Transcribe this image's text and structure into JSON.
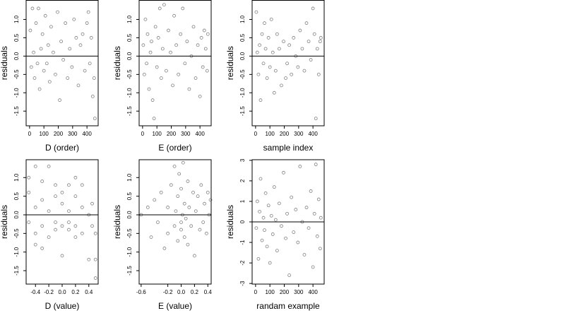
{
  "chart_data": [
    {
      "type": "scatter",
      "x_label": "D (order)",
      "y_label": "residuals",
      "color": "#555555",
      "hline": 0,
      "xlim": [
        -24,
        478
      ],
      "ylim": [
        -1.9,
        1.52
      ],
      "xticks": [
        0,
        100,
        200,
        300,
        400
      ],
      "yticks": [
        {
          "value": -1.5,
          "label": "-1.5"
        },
        {
          "value": -1,
          "label": "-1.0"
        },
        {
          "value": -0.5,
          "label": "-0.5"
        },
        {
          "value": 0,
          "label": "0.0"
        },
        {
          "value": 0.5,
          "label": "0.5"
        },
        {
          "value": 1,
          "label": "1.0"
        }
      ],
      "x": [
        5,
        12,
        20,
        28,
        35,
        45,
        55,
        62,
        70,
        80,
        90,
        100,
        110,
        120,
        130,
        140,
        150,
        165,
        180,
        195,
        210,
        220,
        235,
        250,
        265,
        280,
        295,
        310,
        325,
        340,
        355,
        370,
        385,
        400,
        410,
        420,
        430,
        440,
        450,
        455
      ],
      "values": [
        0.7,
        -0.3,
        1.3,
        0.1,
        -0.6,
        0.9,
        -0.2,
        1.3,
        -0.9,
        0.2,
        0.6,
        -0.4,
        1.1,
        -0.2,
        0.3,
        -0.7,
        0.8,
        0.1,
        -0.5,
        1.2,
        -1.2,
        0.4,
        -0.1,
        0.9,
        -0.6,
        0.2,
        -0.3,
        1.0,
        0.5,
        -0.8,
        0.3,
        0.6,
        -0.4,
        0.9,
        1.2,
        -0.2,
        0.5,
        -1.1,
        -0.6,
        -1.7
      ]
    },
    {
      "type": "scatter",
      "x_label": "E (order)",
      "y_label": "residuals",
      "color": "#555555",
      "hline": 0,
      "xlim": [
        -24,
        478
      ],
      "ylim": [
        -1.9,
        1.52
      ],
      "xticks": [
        0,
        100,
        200,
        300,
        400
      ],
      "yticks": [
        {
          "value": -1.5,
          "label": "-1.5"
        },
        {
          "value": -1,
          "label": "-1.0"
        },
        {
          "value": -0.5,
          "label": "-0.5"
        },
        {
          "value": 0,
          "label": "0.0"
        },
        {
          "value": 0.5,
          "label": "0.5"
        },
        {
          "value": 1,
          "label": "1.0"
        }
      ],
      "x": [
        5,
        12,
        20,
        28,
        35,
        45,
        55,
        62,
        70,
        80,
        90,
        100,
        110,
        120,
        130,
        140,
        150,
        165,
        180,
        195,
        210,
        220,
        235,
        250,
        265,
        280,
        295,
        310,
        325,
        340,
        355,
        370,
        385,
        400,
        410,
        420,
        430,
        440,
        450,
        455
      ],
      "values": [
        0.3,
        -0.5,
        1.0,
        -0.2,
        0.6,
        -0.9,
        0.1,
        0.4,
        -1.2,
        -1.7,
        0.8,
        -0.3,
        0.5,
        1.3,
        -0.6,
        0.2,
        1.4,
        -0.4,
        0.7,
        0.1,
        -0.8,
        1.1,
        0.3,
        -0.5,
        0.6,
        1.3,
        -0.2,
        0.4,
        -0.9,
        0.0,
        0.8,
        -0.6,
        0.3,
        -1.1,
        0.5,
        -0.3,
        0.7,
        0.2,
        -0.4,
        0.6
      ]
    },
    {
      "type": "scatter",
      "x_label": "sample index",
      "y_label": "residuals",
      "color": "#555555",
      "hline": 0,
      "xlim": [
        -24,
        478
      ],
      "ylim": [
        -1.9,
        1.52
      ],
      "xticks": [
        0,
        100,
        200,
        300,
        400
      ],
      "yticks": [
        {
          "value": -1.5,
          "label": "-1.5"
        },
        {
          "value": -1,
          "label": "-1.0"
        },
        {
          "value": -0.5,
          "label": "-0.5"
        },
        {
          "value": 0,
          "label": "0.0"
        },
        {
          "value": 0.5,
          "label": "0.5"
        },
        {
          "value": 1,
          "label": "1.0"
        }
      ],
      "x": [
        5,
        12,
        20,
        28,
        35,
        45,
        55,
        62,
        70,
        80,
        90,
        100,
        110,
        120,
        130,
        140,
        150,
        165,
        180,
        195,
        210,
        220,
        235,
        250,
        265,
        280,
        295,
        310,
        325,
        340,
        355,
        370,
        385,
        400,
        410,
        420,
        430,
        440,
        450,
        455
      ],
      "values": [
        1.2,
        0.1,
        -0.5,
        0.3,
        -1.2,
        0.6,
        -0.2,
        0.9,
        0.2,
        -0.6,
        0.5,
        -0.3,
        1.0,
        0.1,
        -1.0,
        -0.4,
        0.6,
        0.2,
        -0.8,
        0.4,
        -0.6,
        -0.2,
        0.3,
        -0.5,
        0.5,
        0.0,
        -0.3,
        0.7,
        0.2,
        -0.4,
        0.9,
        0.4,
        -0.1,
        1.3,
        0.6,
        -1.7,
        0.2,
        -0.5,
        0.4,
        0.5
      ]
    },
    {
      "type": "scatter",
      "x_label": "D (value)",
      "y_label": "residuals",
      "color": "#555555",
      "hline": 0,
      "xlim": [
        -0.54,
        0.54
      ],
      "ylim": [
        -1.86,
        1.48
      ],
      "xticks": [
        {
          "value": -0.4,
          "label": "-0.4"
        },
        {
          "value": -0.2,
          "label": "-0.2"
        },
        {
          "value": 0,
          "label": "0.0"
        },
        {
          "value": 0.2,
          "label": "0.2"
        },
        {
          "value": 0.4,
          "label": "0.4"
        }
      ],
      "yticks": [
        {
          "value": -1.5,
          "label": "-1.5"
        },
        {
          "value": -1,
          "label": "-1.0"
        },
        {
          "value": -0.5,
          "label": "-0.5"
        },
        {
          "value": 0,
          "label": "0.0"
        },
        {
          "value": 0.5,
          "label": "0.5"
        },
        {
          "value": 1,
          "label": "1.0"
        }
      ],
      "x": [
        -0.5,
        -0.5,
        -0.5,
        -0.4,
        -0.4,
        -0.4,
        -0.4,
        -0.3,
        -0.3,
        -0.3,
        -0.3,
        -0.2,
        -0.2,
        -0.2,
        -0.1,
        -0.1,
        -0.1,
        -0.1,
        0.0,
        0.0,
        0.0,
        0.0,
        0.1,
        0.1,
        0.1,
        0.1,
        0.2,
        0.2,
        0.2,
        0.2,
        0.3,
        0.3,
        0.3,
        0.4,
        0.4,
        0.45,
        0.45,
        0.5,
        0.5,
        0.5
      ],
      "values": [
        0.6,
        -0.2,
        1.0,
        1.3,
        0.2,
        -0.5,
        -0.8,
        0.4,
        -0.3,
        -0.9,
        0.9,
        0.1,
        -0.6,
        1.3,
        0.5,
        -0.2,
        -0.4,
        0.8,
        -0.3,
        0.3,
        -1.1,
        0.6,
        0.1,
        -0.4,
        0.8,
        -0.2,
        -0.3,
        0.5,
        1.0,
        -0.6,
        0.2,
        -0.5,
        0.8,
        0.0,
        -1.2,
        0.3,
        -0.3,
        -0.5,
        -1.2,
        -1.7
      ]
    },
    {
      "type": "scatter",
      "x_label": "E (value)",
      "y_label": "residuals",
      "color": "#555555",
      "hline": 0,
      "xlim": [
        -0.63,
        0.45
      ],
      "ylim": [
        -1.86,
        1.48
      ],
      "xticks": [
        {
          "value": -0.6,
          "label": "-0.6"
        },
        {
          "value": -0.2,
          "label": "-0.2"
        },
        {
          "value": 0,
          "label": "0.0"
        },
        {
          "value": 0.2,
          "label": "0.2"
        },
        {
          "value": 0.4,
          "label": "0.4"
        }
      ],
      "yticks": [
        {
          "value": -1.5,
          "label": "-1.5"
        },
        {
          "value": -1,
          "label": "-1.0"
        },
        {
          "value": -0.5,
          "label": "-0.5"
        },
        {
          "value": 0,
          "label": "0.0"
        },
        {
          "value": 0.5,
          "label": "0.5"
        },
        {
          "value": 1,
          "label": "1.0"
        }
      ],
      "x": [
        -0.6,
        -0.5,
        -0.45,
        -0.4,
        -0.35,
        -0.3,
        -0.25,
        -0.2,
        -0.2,
        -0.15,
        -0.1,
        -0.1,
        -0.08,
        -0.05,
        -0.05,
        -0.03,
        0.0,
        0.0,
        0.0,
        0.02,
        0.03,
        0.05,
        0.05,
        0.07,
        0.1,
        0.1,
        0.12,
        0.15,
        0.18,
        0.2,
        0.22,
        0.25,
        0.28,
        0.3,
        0.33,
        0.35,
        0.38,
        0.4,
        0.42,
        0.44
      ],
      "values": [
        0.0,
        0.2,
        -0.6,
        0.4,
        -0.2,
        0.6,
        -0.9,
        0.2,
        -0.5,
        0.8,
        -0.3,
        1.3,
        0.1,
        -0.7,
        0.5,
        1.1,
        -0.2,
        0.7,
        -0.4,
        0.0,
        1.4,
        -0.6,
        0.3,
        -0.1,
        0.9,
        -0.8,
        0.2,
        -0.3,
        0.6,
        -1.1,
        0.1,
        0.5,
        -0.4,
        0.8,
        -0.2,
        0.3,
        -0.5,
        0.6,
        0.0,
        0.4
      ]
    },
    {
      "type": "scatter",
      "x_label": "randam example",
      "y_label": "residuals",
      "color": "#555555",
      "hline": 0,
      "xlim": [
        -24,
        478
      ],
      "ylim": [
        -3.03,
        3.03
      ],
      "xticks": [
        0,
        100,
        200,
        300,
        400
      ],
      "yticks": [
        -3,
        -2,
        -1,
        0,
        1,
        2,
        3
      ],
      "x": [
        5,
        12,
        20,
        28,
        35,
        45,
        55,
        62,
        70,
        80,
        90,
        100,
        110,
        120,
        130,
        140,
        150,
        165,
        180,
        195,
        210,
        220,
        235,
        250,
        265,
        280,
        295,
        310,
        325,
        340,
        355,
        370,
        385,
        400,
        410,
        420,
        430,
        440,
        450,
        455
      ],
      "values": [
        -0.3,
        1.0,
        -1.8,
        0.5,
        2.1,
        -0.9,
        0.2,
        -0.4,
        1.4,
        -1.2,
        0.8,
        -2.0,
        0.3,
        -0.6,
        1.7,
        0.1,
        -1.4,
        0.9,
        -0.2,
        2.4,
        -0.8,
        0.4,
        -2.6,
        1.2,
        -0.5,
        0.6,
        -1.0,
        2.7,
        0.0,
        -1.6,
        0.7,
        -0.3,
        1.5,
        -2.2,
        0.4,
        2.8,
        -0.7,
        1.1,
        -1.3,
        0.2
      ]
    }
  ]
}
